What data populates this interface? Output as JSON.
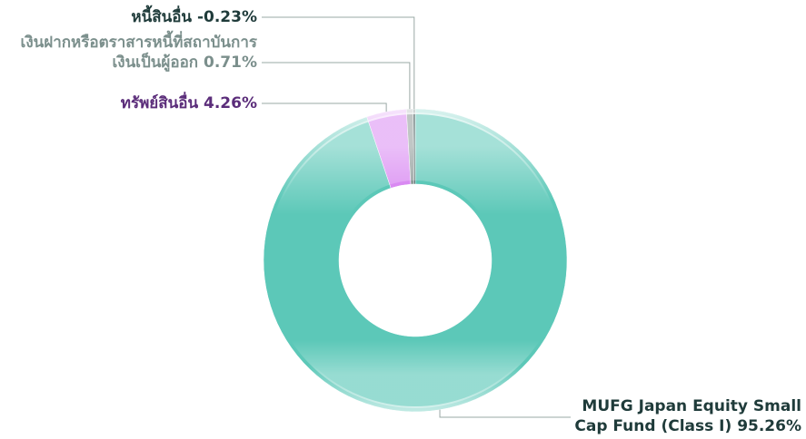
{
  "chart_data": {
    "type": "donut",
    "categories": [
      "MUFG Japan Equity Small Cap Fund (Class I)",
      "ทรัพย์สินอื่น",
      "เงินฝากหรือตราสารหนี้ที่สถาบันการเงินเป็นผู้ออก",
      "หนี้สินอื่น"
    ],
    "values": [
      95.26,
      4.26,
      0.71,
      -0.23
    ],
    "value_labels": [
      "95.26%",
      "4.26%",
      "0.71%",
      "-0.23%"
    ],
    "colors": [
      "#5cc8b8",
      "#d98af2",
      "#8c9896",
      "#1f3b3a"
    ],
    "label_colors": [
      "#1f3b3a",
      "#5b2d7a",
      "#7b8f8c",
      "#1f3b3a"
    ]
  }
}
